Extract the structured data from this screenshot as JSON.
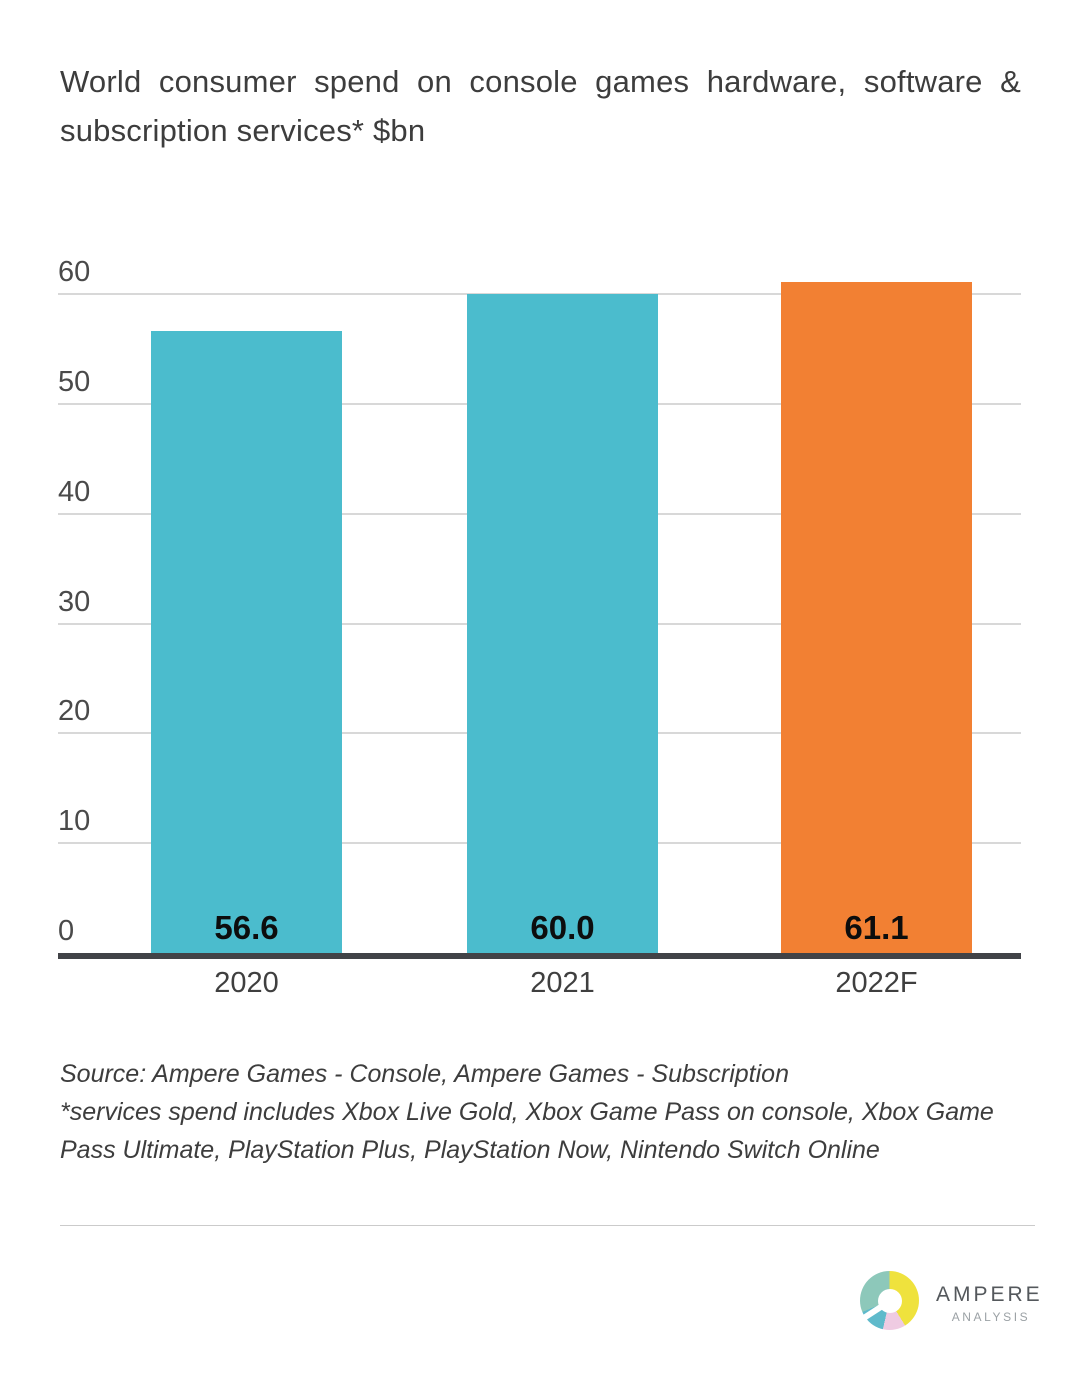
{
  "title": {
    "line1": "World consumer spend on console games hardware, software &",
    "line2": "subscription services* $bn"
  },
  "chart_data": {
    "type": "bar",
    "title": "World consumer spend on console games hardware, software & subscription services* $bn",
    "categories": [
      "2020",
      "2021",
      "2022F"
    ],
    "values": [
      56.6,
      60.0,
      61.1
    ],
    "value_labels": [
      "56.6",
      "60.0",
      "61.1"
    ],
    "bar_colors": [
      "#4bbccd",
      "#4bbccd",
      "#f28033"
    ],
    "xlabel": "",
    "ylabel": "",
    "ylim": [
      0,
      62
    ],
    "yticks": [
      0,
      10,
      20,
      30,
      40,
      50,
      60
    ],
    "grid": "horizontal gridlines at each y tick",
    "legend": "none",
    "value_label_position": "inside bottom of bar"
  },
  "footer": {
    "source_line": "Source: Ampere Games - Console, Ampere Games - Subscription",
    "footnote_line1": "*services spend includes Xbox Live Gold, Xbox Game Pass on console, Xbox Game",
    "footnote_line2": "Pass Ultimate, PlayStation Plus, PlayStation Now, Nintendo Switch Online"
  },
  "logo": {
    "name": "AMPERE",
    "subname": "ANALYSIS",
    "segment_colors": [
      "#efe23d",
      "#efcbe2",
      "#5fbacb",
      "#8dc8ba"
    ]
  },
  "colors": {
    "teal_bar": "#4bbccd",
    "orange_bar": "#f28033",
    "axis_line": "#414347",
    "gridline": "#d8d8d8",
    "title_text": "#3d3d3d",
    "tick_text": "#4a4a4a",
    "value_text": "#0d0d0d"
  }
}
